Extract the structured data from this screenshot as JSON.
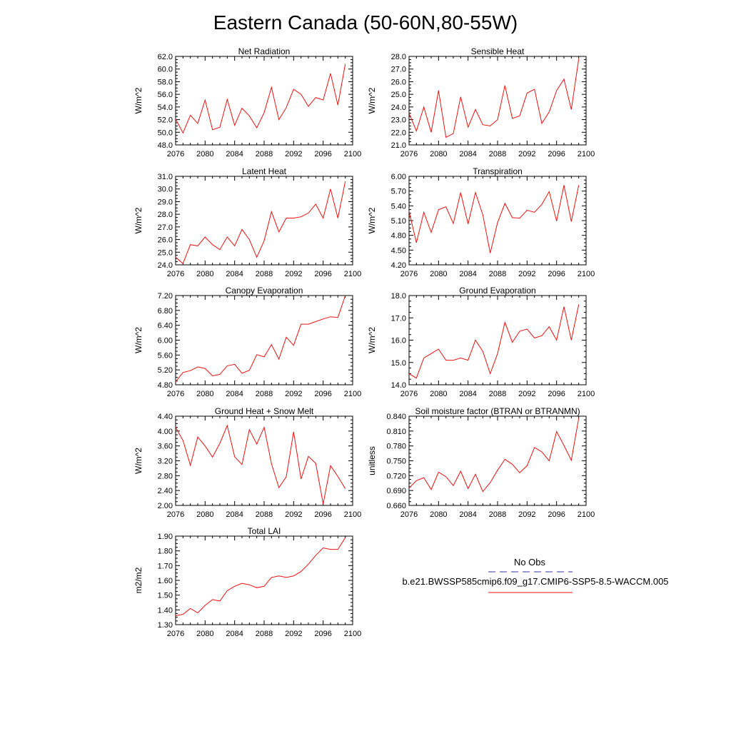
{
  "title": "Eastern Canada (50-60N,80-55W)",
  "colors": {
    "model": "#ee1111",
    "obs": "#3333aa",
    "axis": "#000000"
  },
  "legend": {
    "obs_label": "No Obs",
    "model_label": "b.e21.BWSSP585cmip6.f09_g17.CMIP6-SSP5-8.5-WACCM.005"
  },
  "chart_data": [
    {
      "type": "line",
      "title": "Net Radiation",
      "ylabel": "W/m^2",
      "xlim": [
        2076,
        2100
      ],
      "ylim": [
        48.0,
        62.0
      ],
      "xticks": [
        "2076",
        "2080",
        "2084",
        "2088",
        "2092",
        "2096",
        "2100"
      ],
      "yticks": [
        "48.0",
        "50.0",
        "52.0",
        "54.0",
        "56.0",
        "58.0",
        "60.0",
        "62.0"
      ],
      "x": [
        2076,
        2077,
        2078,
        2079,
        2080,
        2081,
        2082,
        2083,
        2084,
        2085,
        2086,
        2087,
        2088,
        2089,
        2090,
        2091,
        2092,
        2093,
        2094,
        2095,
        2096,
        2097,
        2098,
        2099
      ],
      "series": [
        {
          "name": "b.e21.BWSSP585cmip6.f09_g17.CMIP6-SSP5-8.5-WACCM.005",
          "values": [
            52.1,
            49.9,
            52.7,
            51.4,
            55.1,
            50.4,
            50.8,
            55.2,
            51.1,
            53.8,
            52.6,
            50.7,
            53.1,
            57.1,
            52.0,
            53.9,
            56.8,
            56.0,
            54.1,
            55.5,
            55.1,
            59.3,
            54.3,
            60.8
          ]
        }
      ]
    },
    {
      "type": "line",
      "title": "Sensible Heat",
      "ylabel": "W/m^2",
      "xlim": [
        2076,
        2100
      ],
      "ylim": [
        21.0,
        28.0
      ],
      "xticks": [
        "2076",
        "2080",
        "2084",
        "2088",
        "2092",
        "2096",
        "2100"
      ],
      "yticks": [
        "21.0",
        "22.0",
        "23.0",
        "24.0",
        "25.0",
        "26.0",
        "27.0",
        "28.0"
      ],
      "x": [
        2076,
        2077,
        2078,
        2079,
        2080,
        2081,
        2082,
        2083,
        2084,
        2085,
        2086,
        2087,
        2088,
        2089,
        2090,
        2091,
        2092,
        2093,
        2094,
        2095,
        2096,
        2097,
        2098,
        2099
      ],
      "series": [
        {
          "name": "b.e21.BWSSP585cmip6.f09_g17.CMIP6-SSP5-8.5-WACCM.005",
          "values": [
            23.5,
            22.1,
            24.0,
            22.0,
            25.3,
            21.6,
            21.9,
            24.8,
            22.4,
            23.8,
            22.6,
            22.5,
            23.0,
            25.7,
            23.1,
            23.3,
            25.1,
            25.4,
            22.7,
            23.6,
            25.3,
            26.2,
            23.8,
            27.8
          ]
        }
      ]
    },
    {
      "type": "line",
      "title": "Latent Heat",
      "ylabel": "W/m^2",
      "xlim": [
        2076,
        2100
      ],
      "ylim": [
        24.0,
        31.0
      ],
      "xticks": [
        "2076",
        "2080",
        "2084",
        "2088",
        "2092",
        "2096",
        "2100"
      ],
      "yticks": [
        "24.0",
        "25.0",
        "26.0",
        "27.0",
        "28.0",
        "29.0",
        "30.0",
        "31.0"
      ],
      "x": [
        2076,
        2077,
        2078,
        2079,
        2080,
        2081,
        2082,
        2083,
        2084,
        2085,
        2086,
        2087,
        2088,
        2089,
        2090,
        2091,
        2092,
        2093,
        2094,
        2095,
        2096,
        2097,
        2098,
        2099
      ],
      "series": [
        {
          "name": "b.e21.BWSSP585cmip6.f09_g17.CMIP6-SSP5-8.5-WACCM.005",
          "values": [
            24.6,
            24.1,
            25.6,
            25.5,
            26.2,
            25.6,
            25.2,
            26.2,
            25.5,
            26.8,
            26.0,
            24.6,
            25.9,
            28.2,
            26.6,
            27.7,
            27.7,
            27.8,
            28.1,
            28.8,
            27.7,
            30.0,
            27.7,
            30.6
          ]
        }
      ]
    },
    {
      "type": "line",
      "title": "Transpiration",
      "ylabel": "W/m^2",
      "xlim": [
        2076,
        2100
      ],
      "ylim": [
        4.2,
        6.0
      ],
      "xticks": [
        "2076",
        "2080",
        "2084",
        "2088",
        "2092",
        "2096",
        "2100"
      ],
      "yticks": [
        "4.20",
        "4.50",
        "4.80",
        "5.10",
        "5.40",
        "5.70",
        "6.00"
      ],
      "x": [
        2076,
        2077,
        2078,
        2079,
        2080,
        2081,
        2082,
        2083,
        2084,
        2085,
        2086,
        2087,
        2088,
        2089,
        2090,
        2091,
        2092,
        2093,
        2094,
        2095,
        2096,
        2097,
        2098,
        2099
      ],
      "series": [
        {
          "name": "b.e21.BWSSP585cmip6.f09_g17.CMIP6-SSP5-8.5-WACCM.005",
          "values": [
            5.29,
            4.65,
            5.27,
            4.86,
            5.32,
            5.38,
            5.04,
            5.67,
            5.03,
            5.67,
            5.22,
            4.44,
            5.06,
            5.45,
            5.16,
            5.15,
            5.31,
            5.27,
            5.43,
            5.69,
            5.09,
            5.82,
            5.08,
            5.82
          ]
        }
      ]
    },
    {
      "type": "line",
      "title": "Canopy Evaporation",
      "ylabel": "W/m^2",
      "xlim": [
        2076,
        2100
      ],
      "ylim": [
        4.8,
        7.2
      ],
      "xticks": [
        "2076",
        "2080",
        "2084",
        "2088",
        "2092",
        "2096",
        "2100"
      ],
      "yticks": [
        "4.80",
        "5.20",
        "5.60",
        "6.00",
        "6.40",
        "6.80",
        "7.20"
      ],
      "x": [
        2076,
        2077,
        2078,
        2079,
        2080,
        2081,
        2082,
        2083,
        2084,
        2085,
        2086,
        2087,
        2088,
        2089,
        2090,
        2091,
        2092,
        2093,
        2094,
        2095,
        2096,
        2097,
        2098,
        2099
      ],
      "series": [
        {
          "name": "b.e21.BWSSP585cmip6.f09_g17.CMIP6-SSP5-8.5-WACCM.005",
          "values": [
            4.88,
            5.13,
            5.18,
            5.28,
            5.24,
            5.04,
            5.08,
            5.31,
            5.35,
            5.11,
            5.19,
            5.61,
            5.55,
            5.88,
            5.49,
            6.08,
            5.86,
            6.43,
            6.43,
            6.5,
            6.57,
            6.63,
            6.61,
            7.2
          ]
        }
      ]
    },
    {
      "type": "line",
      "title": "Ground Evaporation",
      "ylabel": "W/m^2",
      "xlim": [
        2076,
        2100
      ],
      "ylim": [
        14.0,
        18.0
      ],
      "xticks": [
        "2076",
        "2080",
        "2084",
        "2088",
        "2092",
        "2096",
        "2100"
      ],
      "yticks": [
        "14.0",
        "15.0",
        "16.0",
        "17.0",
        "18.0"
      ],
      "x": [
        2076,
        2077,
        2078,
        2079,
        2080,
        2081,
        2082,
        2083,
        2084,
        2085,
        2086,
        2087,
        2088,
        2089,
        2090,
        2091,
        2092,
        2093,
        2094,
        2095,
        2096,
        2097,
        2098,
        2099
      ],
      "series": [
        {
          "name": "b.e21.BWSSP585cmip6.f09_g17.CMIP6-SSP5-8.5-WACCM.005",
          "values": [
            14.5,
            14.3,
            15.2,
            15.4,
            15.6,
            15.1,
            15.1,
            15.2,
            15.1,
            16.0,
            15.5,
            14.5,
            15.4,
            16.8,
            15.9,
            16.4,
            16.5,
            16.1,
            16.2,
            16.6,
            16.0,
            17.5,
            16.0,
            17.6
          ]
        }
      ]
    },
    {
      "type": "line",
      "title": "Ground Heat + Snow Melt",
      "ylabel": "W/m^2",
      "xlim": [
        2076,
        2100
      ],
      "ylim": [
        2.0,
        4.4
      ],
      "xticks": [
        "2076",
        "2080",
        "2084",
        "2088",
        "2092",
        "2096",
        "2100"
      ],
      "yticks": [
        "2.00",
        "2.40",
        "2.80",
        "3.20",
        "3.60",
        "4.00",
        "4.40"
      ],
      "x": [
        2076,
        2077,
        2078,
        2079,
        2080,
        2081,
        2082,
        2083,
        2084,
        2085,
        2086,
        2087,
        2088,
        2089,
        2090,
        2091,
        2092,
        2093,
        2094,
        2095,
        2096,
        2097,
        2098,
        2099
      ],
      "series": [
        {
          "name": "b.e21.BWSSP585cmip6.f09_g17.CMIP6-SSP5-8.5-WACCM.005",
          "values": [
            4.1,
            3.75,
            3.08,
            3.84,
            3.6,
            3.3,
            3.67,
            4.15,
            3.31,
            3.1,
            4.04,
            3.65,
            4.1,
            3.12,
            2.48,
            2.77,
            3.98,
            2.71,
            3.32,
            3.13,
            2.04,
            3.07,
            2.78,
            2.45
          ]
        }
      ]
    },
    {
      "type": "line",
      "title": "Soil moisture factor (BTRAN or BTRANMN)",
      "ylabel": "unitless",
      "xlim": [
        2076,
        2100
      ],
      "ylim": [
        0.66,
        0.84
      ],
      "xticks": [
        "2076",
        "2080",
        "2084",
        "2088",
        "2092",
        "2096",
        "2100"
      ],
      "yticks": [
        "0.660",
        "0.690",
        "0.720",
        "0.750",
        "0.780",
        "0.810",
        "0.840"
      ],
      "x": [
        2076,
        2077,
        2078,
        2079,
        2080,
        2081,
        2082,
        2083,
        2084,
        2085,
        2086,
        2087,
        2088,
        2089,
        2090,
        2091,
        2092,
        2093,
        2094,
        2095,
        2096,
        2097,
        2098,
        2099
      ],
      "series": [
        {
          "name": "b.e21.BWSSP585cmip6.f09_g17.CMIP6-SSP5-8.5-WACCM.005",
          "values": [
            0.695,
            0.71,
            0.716,
            0.692,
            0.727,
            0.718,
            0.7,
            0.729,
            0.694,
            0.723,
            0.688,
            0.706,
            0.731,
            0.753,
            0.743,
            0.726,
            0.74,
            0.777,
            0.768,
            0.75,
            0.809,
            0.781,
            0.751,
            0.836
          ]
        }
      ]
    },
    {
      "type": "line",
      "title": "Total LAI",
      "ylabel": "m2/m2",
      "xlim": [
        2076,
        2100
      ],
      "ylim": [
        1.3,
        1.9
      ],
      "xticks": [
        "2076",
        "2080",
        "2084",
        "2088",
        "2092",
        "2096",
        "2100"
      ],
      "yticks": [
        "1.30",
        "1.40",
        "1.50",
        "1.60",
        "1.70",
        "1.80",
        "1.90"
      ],
      "x": [
        2076,
        2077,
        2078,
        2079,
        2080,
        2081,
        2082,
        2083,
        2084,
        2085,
        2086,
        2087,
        2088,
        2089,
        2090,
        2091,
        2092,
        2093,
        2094,
        2095,
        2096,
        2097,
        2098,
        2099
      ],
      "series": [
        {
          "name": "b.e21.BWSSP585cmip6.f09_g17.CMIP6-SSP5-8.5-WACCM.005",
          "values": [
            1.36,
            1.37,
            1.41,
            1.38,
            1.43,
            1.47,
            1.46,
            1.53,
            1.56,
            1.58,
            1.57,
            1.55,
            1.56,
            1.62,
            1.63,
            1.62,
            1.63,
            1.66,
            1.71,
            1.77,
            1.82,
            1.81,
            1.81,
            1.89
          ]
        }
      ]
    }
  ]
}
